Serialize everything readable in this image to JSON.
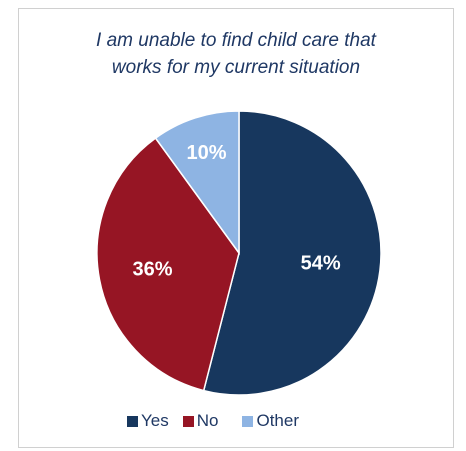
{
  "chart_data": {
    "type": "pie",
    "title_lines": [
      "I am unable to find child care that",
      "works for my current situation"
    ],
    "slices": [
      {
        "name": "Yes",
        "value": 54,
        "label": "54%",
        "color": "#17375e"
      },
      {
        "name": "No",
        "value": 36,
        "label": "36%",
        "color": "#961524"
      },
      {
        "name": "Other",
        "value": 10,
        "label": "10%",
        "color": "#8eb4e3"
      }
    ],
    "legend_position": "bottom",
    "start_angle": "12 o'clock",
    "direction": "clockwise"
  }
}
